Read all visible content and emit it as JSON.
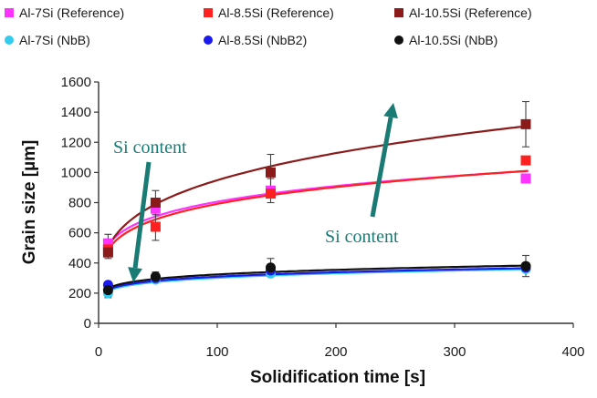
{
  "chart_data": {
    "type": "scatter",
    "xlabel": "Solidification time [s]",
    "ylabel": "Grain size [µm]",
    "xlim": [
      0,
      400
    ],
    "ylim": [
      0,
      1600
    ],
    "x_ticks": [
      "0",
      "100",
      "200",
      "300",
      "400"
    ],
    "y_ticks": [
      "0",
      "200",
      "400",
      "600",
      "800",
      "1000",
      "1200",
      "1400",
      "1600"
    ],
    "grid": false,
    "legend_position": "top",
    "series": [
      {
        "name": "Al-7Si (Reference)",
        "color": "#ff33ff",
        "marker": "square",
        "x": [
          8,
          48,
          145,
          360
        ],
        "y": [
          530,
          760,
          880,
          960
        ],
        "err": [
          60,
          0,
          80,
          0
        ],
        "fit": {
          "a": 360,
          "b": 0.175
        }
      },
      {
        "name": "Al-8.5Si (Reference)",
        "color": "#ff2020",
        "marker": "square",
        "x": [
          8,
          48,
          145,
          360
        ],
        "y": [
          490,
          640,
          860,
          1080
        ],
        "err": [
          40,
          90,
          0,
          0
        ],
        "fit": {
          "a": 330,
          "b": 0.19
        }
      },
      {
        "name": "Al-10.5Si (Reference)",
        "color": "#8b1a1a",
        "marker": "square",
        "x": [
          8,
          48,
          145,
          360
        ],
        "y": [
          470,
          800,
          1000,
          1320
        ],
        "err": [
          40,
          80,
          120,
          150
        ],
        "fit": {
          "a": 300,
          "b": 0.25
        }
      },
      {
        "name": "Al-7Si (NbB)",
        "color": "#33ccee",
        "marker": "circle",
        "x": [
          8,
          48,
          145,
          360
        ],
        "y": [
          200,
          290,
          330,
          360
        ],
        "err": [
          30,
          0,
          0,
          0
        ],
        "fit": {
          "a": 162,
          "b": 0.135
        }
      },
      {
        "name": "Al-8.5Si (NbB2)",
        "color": "#1a1aee",
        "marker": "circle",
        "x": [
          8,
          48,
          145,
          360
        ],
        "y": [
          255,
          300,
          350,
          370
        ],
        "err": [
          0,
          0,
          0,
          0
        ],
        "fit": {
          "a": 170,
          "b": 0.13
        }
      },
      {
        "name": "Al-10.5Si (NbB)",
        "color": "#111111",
        "marker": "circle",
        "x": [
          8,
          48,
          145,
          360
        ],
        "y": [
          220,
          310,
          370,
          380
        ],
        "err": [
          30,
          30,
          60,
          70
        ],
        "fit": {
          "a": 178,
          "b": 0.13
        }
      }
    ],
    "annotations": [
      {
        "text": "Si content",
        "color": "#1a7a74"
      },
      {
        "text": "Si content",
        "color": "#1a7a74"
      }
    ]
  }
}
